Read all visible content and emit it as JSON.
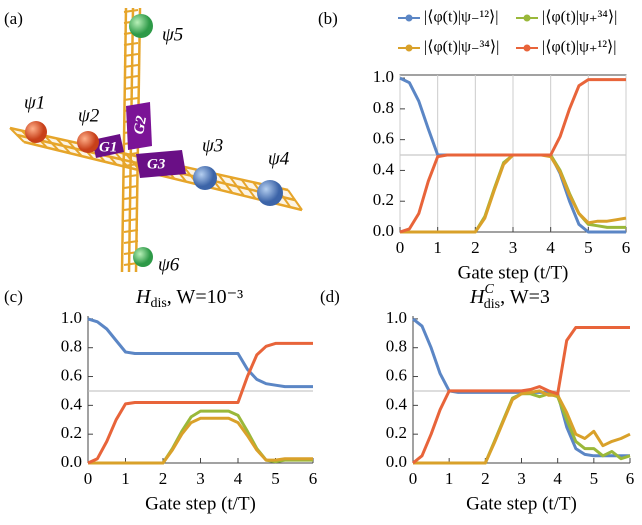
{
  "diagram": {
    "panel": "(a)",
    "psi": [
      "ψ1",
      "ψ2",
      "ψ3",
      "ψ4",
      "ψ5",
      "ψ6"
    ],
    "gates": [
      "G1",
      "G2",
      "G3"
    ]
  },
  "chart_data": [
    {
      "type": "line",
      "panel": "(b)",
      "xlabel": "Gate step (t/T)",
      "x": [
        0,
        0.25,
        0.5,
        0.75,
        1,
        1.25,
        1.5,
        1.75,
        2,
        2.25,
        2.5,
        2.75,
        3,
        3.25,
        3.5,
        3.75,
        4,
        4.25,
        4.5,
        4.75,
        5,
        5.25,
        5.5,
        5.75,
        6
      ],
      "xlim": [
        0,
        6
      ],
      "xticks": [
        0,
        1,
        2,
        3,
        4,
        5,
        6
      ],
      "ylim": [
        0,
        1.02
      ],
      "yticks": [
        {
          "value": 0,
          "label": "0.0"
        },
        0.2,
        0.4,
        0.6,
        0.8,
        {
          "value": 1,
          "label": "1.0"
        }
      ],
      "grid_x": true,
      "hline": 0.5,
      "frame": true,
      "series": [
        {
          "name": "|⟨φ(t)|ψ₋¹²⟩|",
          "color": "#5b86c5",
          "values": [
            1.0,
            0.97,
            0.85,
            0.67,
            0.5,
            0.5,
            0.5,
            0.5,
            0.5,
            0.5,
            0.5,
            0.5,
            0.5,
            0.5,
            0.5,
            0.5,
            0.5,
            0.38,
            0.2,
            0.05,
            0.0,
            0.0,
            0.0,
            0.0,
            0.0
          ]
        },
        {
          "name": "|⟨φ(t)|ψ₊³⁴⟩|",
          "color": "#9ab83a",
          "values": [
            0,
            0,
            0,
            0,
            0,
            0,
            0,
            0,
            0,
            0.1,
            0.28,
            0.45,
            0.5,
            0.5,
            0.5,
            0.5,
            0.5,
            0.4,
            0.25,
            0.12,
            0.05,
            0.04,
            0.03,
            0.03,
            0.03
          ]
        },
        {
          "name": "|⟨φ(t)|ψ₋³⁴⟩|",
          "color": "#d9a12a",
          "values": [
            0,
            0,
            0,
            0,
            0,
            0,
            0,
            0,
            0,
            0.09,
            0.27,
            0.44,
            0.5,
            0.5,
            0.5,
            0.5,
            0.49,
            0.39,
            0.24,
            0.12,
            0.06,
            0.07,
            0.07,
            0.08,
            0.09
          ]
        },
        {
          "name": "|⟨φ(t)|ψ₊¹²⟩|",
          "color": "#e8643a",
          "values": [
            0,
            0.02,
            0.12,
            0.33,
            0.49,
            0.5,
            0.5,
            0.5,
            0.5,
            0.5,
            0.5,
            0.5,
            0.5,
            0.5,
            0.5,
            0.5,
            0.5,
            0.62,
            0.8,
            0.95,
            0.99,
            0.99,
            0.99,
            0.99,
            0.99
          ]
        }
      ]
    },
    {
      "type": "line",
      "panel": "(c)",
      "xlabel": "Gate step (t/T)",
      "title": {
        "main": "H",
        "sub": "dis",
        "rest": ", W=10⁻³"
      },
      "x": [
        0,
        0.25,
        0.5,
        0.75,
        1,
        1.25,
        1.5,
        1.75,
        2,
        2.25,
        2.5,
        2.75,
        3,
        3.25,
        3.5,
        3.75,
        4,
        4.25,
        4.5,
        4.75,
        5,
        5.25,
        5.5,
        5.75,
        6
      ],
      "xlim": [
        0,
        6
      ],
      "xticks": [
        0,
        1,
        2,
        3,
        4,
        5,
        6
      ],
      "ylim": [
        0,
        1.02
      ],
      "yticks": [
        {
          "value": 0,
          "label": "0.0"
        },
        0.2,
        0.4,
        0.6,
        0.8,
        {
          "value": 1,
          "label": "1.0"
        }
      ],
      "hline": 0.5,
      "series": [
        {
          "color": "#5b86c5",
          "values": [
            1.0,
            0.98,
            0.93,
            0.85,
            0.77,
            0.76,
            0.76,
            0.76,
            0.76,
            0.76,
            0.76,
            0.76,
            0.76,
            0.76,
            0.76,
            0.76,
            0.76,
            0.65,
            0.58,
            0.55,
            0.54,
            0.53,
            0.53,
            0.53,
            0.53
          ]
        },
        {
          "color": "#9ab83a",
          "values": [
            0,
            0,
            0,
            0,
            0,
            0,
            0,
            0,
            0,
            0.1,
            0.22,
            0.32,
            0.36,
            0.36,
            0.36,
            0.36,
            0.33,
            0.22,
            0.1,
            0.02,
            0.01,
            0.02,
            0.02,
            0.02,
            0.02
          ]
        },
        {
          "color": "#d9a12a",
          "values": [
            0,
            0,
            0,
            0,
            0,
            0,
            0,
            0,
            0,
            0.09,
            0.2,
            0.28,
            0.31,
            0.31,
            0.31,
            0.31,
            0.28,
            0.19,
            0.09,
            0.02,
            0.02,
            0.03,
            0.03,
            0.03,
            0.03
          ]
        },
        {
          "color": "#e8643a",
          "values": [
            0,
            0.03,
            0.15,
            0.3,
            0.41,
            0.42,
            0.42,
            0.42,
            0.42,
            0.42,
            0.42,
            0.42,
            0.42,
            0.42,
            0.42,
            0.42,
            0.42,
            0.6,
            0.75,
            0.81,
            0.83,
            0.83,
            0.83,
            0.83,
            0.83
          ]
        }
      ]
    },
    {
      "type": "line",
      "panel": "(d)",
      "xlabel": "Gate step (t/T)",
      "title": {
        "main": "H",
        "sup": "C",
        "sub": "dis",
        "rest": ", W=3"
      },
      "x": [
        0,
        0.25,
        0.5,
        0.75,
        1,
        1.25,
        1.5,
        1.75,
        2,
        2.25,
        2.5,
        2.75,
        3,
        3.25,
        3.5,
        3.75,
        4,
        4.25,
        4.5,
        4.75,
        5,
        5.25,
        5.5,
        5.75,
        6
      ],
      "xlim": [
        0,
        6
      ],
      "xticks": [
        0,
        1,
        2,
        3,
        4,
        5,
        6
      ],
      "ylim": [
        0,
        1.02
      ],
      "yticks": [
        {
          "value": 0,
          "label": "0.0"
        },
        0.2,
        0.4,
        0.6,
        0.8,
        {
          "value": 1,
          "label": "1.0"
        }
      ],
      "hline": 0.5,
      "series": [
        {
          "color": "#5b86c5",
          "values": [
            1.0,
            0.95,
            0.8,
            0.62,
            0.5,
            0.49,
            0.49,
            0.49,
            0.49,
            0.49,
            0.49,
            0.49,
            0.49,
            0.49,
            0.49,
            0.49,
            0.48,
            0.25,
            0.1,
            0.06,
            0.05,
            0.05,
            0.05,
            0.05,
            0.05
          ]
        },
        {
          "color": "#9ab83a",
          "values": [
            0,
            0,
            0,
            0,
            0,
            0,
            0,
            0,
            0,
            0.15,
            0.3,
            0.45,
            0.48,
            0.48,
            0.46,
            0.48,
            0.46,
            0.3,
            0.15,
            0.1,
            0.1,
            0.05,
            0.08,
            0.03,
            0.05
          ]
        },
        {
          "color": "#d9a12a",
          "values": [
            0,
            0,
            0,
            0,
            0,
            0,
            0,
            0,
            0,
            0.14,
            0.29,
            0.44,
            0.48,
            0.49,
            0.5,
            0.47,
            0.47,
            0.35,
            0.2,
            0.17,
            0.22,
            0.12,
            0.15,
            0.17,
            0.2
          ]
        },
        {
          "color": "#e8643a",
          "values": [
            0,
            0.05,
            0.2,
            0.37,
            0.5,
            0.5,
            0.5,
            0.5,
            0.5,
            0.5,
            0.5,
            0.5,
            0.5,
            0.51,
            0.53,
            0.5,
            0.48,
            0.85,
            0.94,
            0.94,
            0.94,
            0.94,
            0.94,
            0.94,
            0.94
          ]
        }
      ]
    }
  ]
}
